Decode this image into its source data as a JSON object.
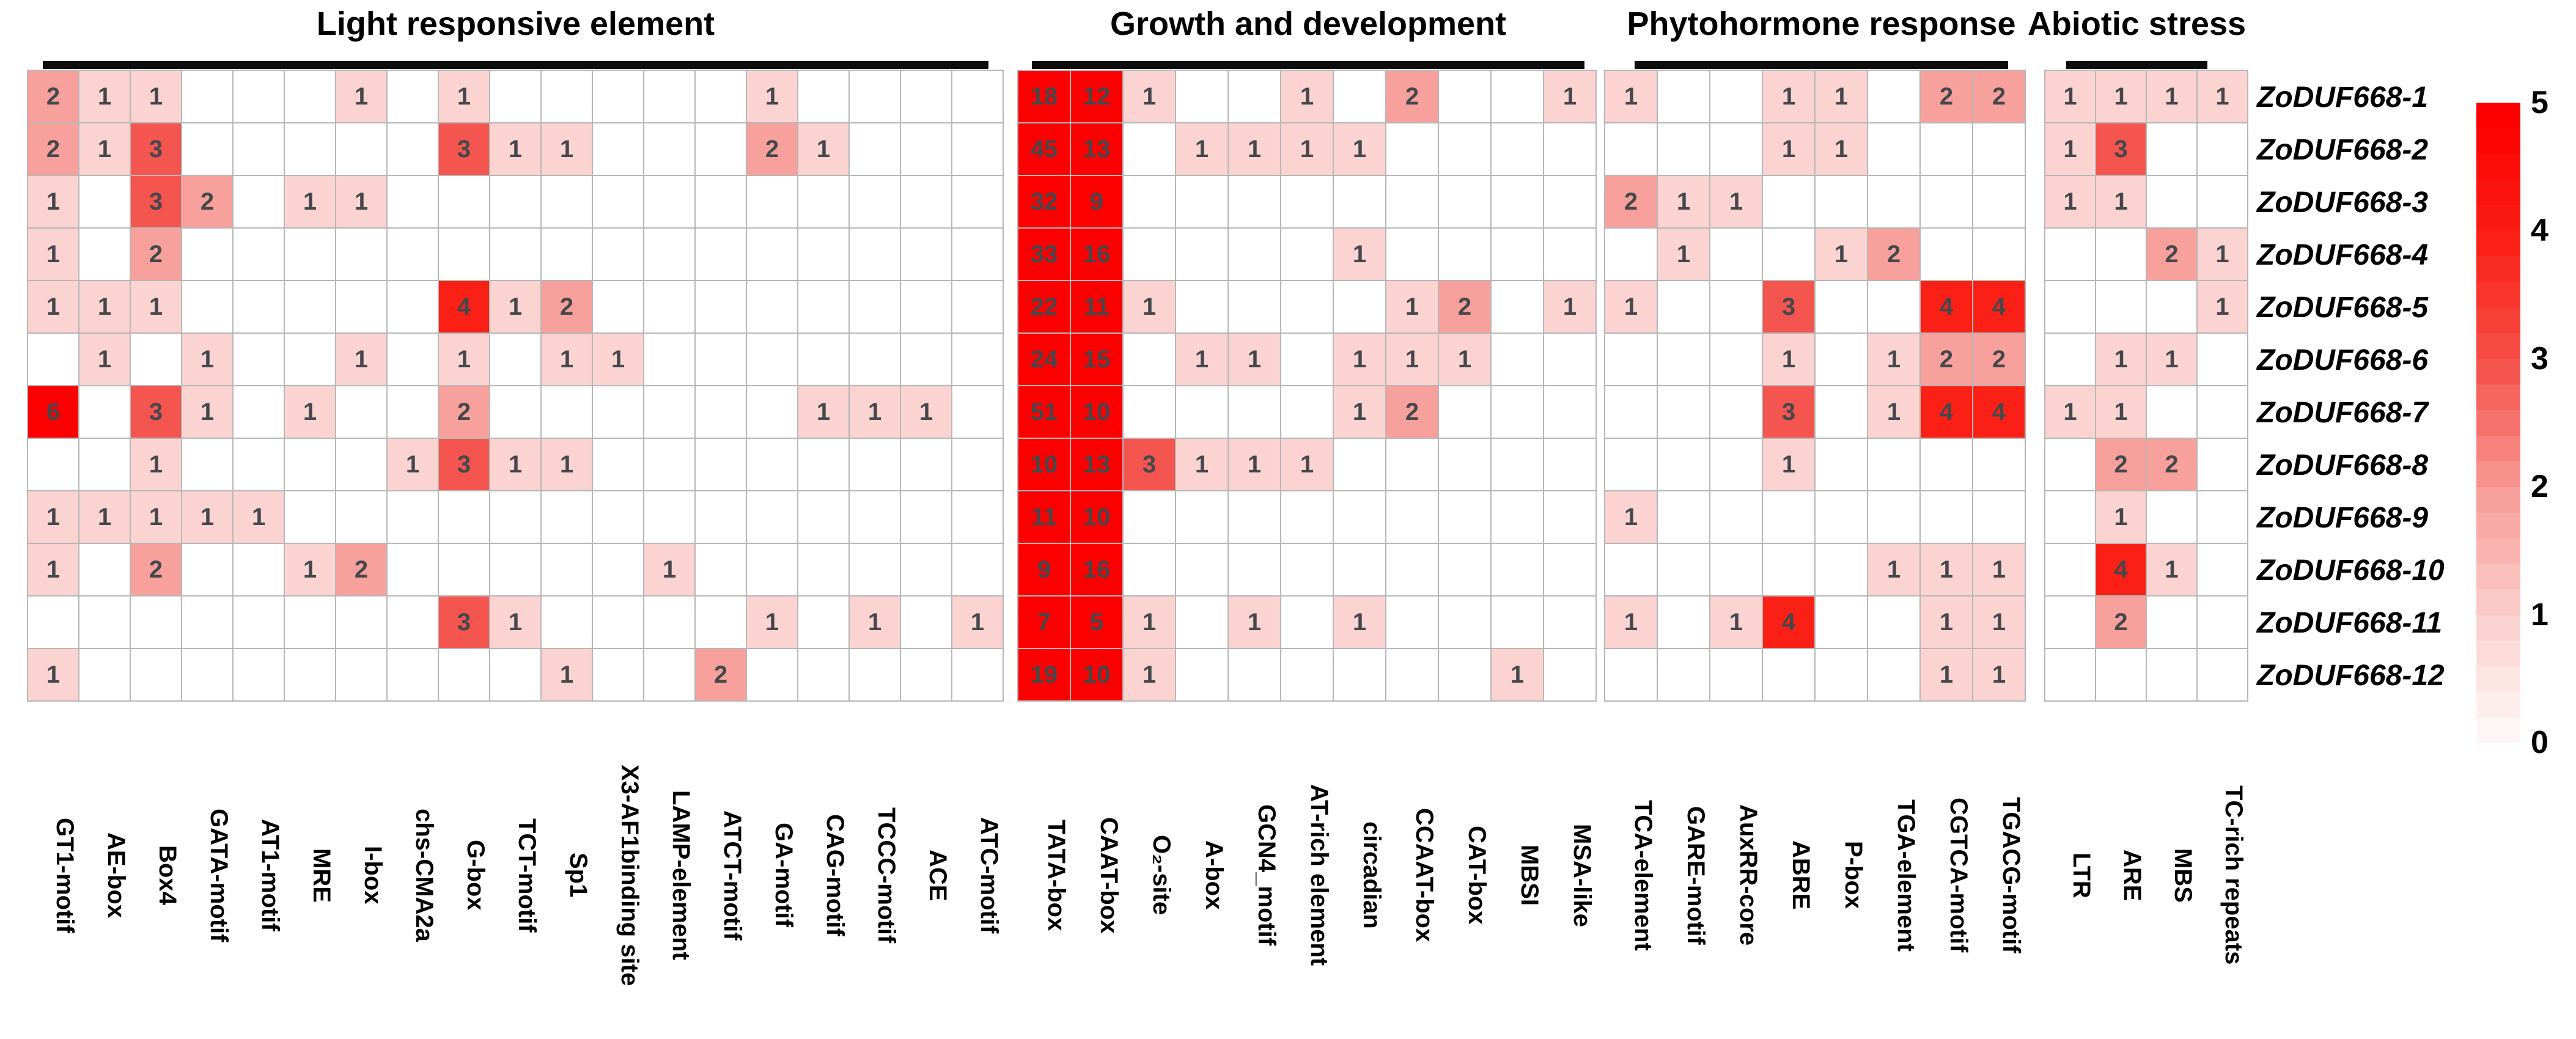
{
  "chart_data": {
    "type": "heatmap",
    "title": "",
    "column_groups": [
      {
        "label": "Light responsive element",
        "columns": [
          "GT1-motif",
          "AE-box",
          "Box4",
          "GATA-motif",
          "AT1-motif",
          "MRE",
          "I-box",
          "chs-CMA2a",
          "G-box",
          "TCT-motif",
          "Sp1",
          "X3-AF1binding site",
          "LAMP-element",
          "ATCT-motif",
          "GA-motif",
          "CAG-motif",
          "TCCC-motif",
          "ACE",
          "ATC-motif"
        ]
      },
      {
        "label": "Growth and development",
        "columns": [
          "TATA-box",
          "CAAT-box",
          "O₂-site",
          "A-box",
          "GCN4_motif",
          "AT-rich element",
          "circadian",
          "CCAAT-box",
          "CAT-box",
          "MBSI",
          "MSA-like"
        ]
      },
      {
        "label": "Phytohormone response",
        "columns": [
          "TCA-element",
          "GARE-motif",
          "AuxRR-core",
          "ABRE",
          "P-box",
          "TGA-element",
          "CGTCA-motif",
          "TGACG-motif"
        ]
      },
      {
        "label": "Abiotic stress",
        "columns": [
          "LTR",
          "ARE",
          "MBS",
          "TC-rich repeats"
        ]
      }
    ],
    "rows": [
      {
        "label": "ZoDUF668-1",
        "values": [
          [
            2,
            1,
            1,
            0,
            0,
            0,
            1,
            0,
            1,
            0,
            0,
            0,
            0,
            0,
            1,
            0,
            0,
            0,
            0
          ],
          [
            18,
            12,
            1,
            0,
            0,
            1,
            0,
            2,
            0,
            0,
            1
          ],
          [
            1,
            0,
            0,
            1,
            1,
            0,
            2,
            2
          ],
          [
            1,
            1,
            1,
            1
          ]
        ]
      },
      {
        "label": "ZoDUF668-2",
        "values": [
          [
            2,
            1,
            3,
            0,
            0,
            0,
            0,
            0,
            3,
            1,
            1,
            0,
            0,
            0,
            2,
            1,
            0,
            0,
            0
          ],
          [
            45,
            13,
            0,
            1,
            1,
            1,
            1,
            0,
            0,
            0,
            0
          ],
          [
            0,
            0,
            0,
            1,
            1,
            0,
            0,
            0
          ],
          [
            1,
            3,
            0,
            0
          ]
        ]
      },
      {
        "label": "ZoDUF668-3",
        "values": [
          [
            1,
            0,
            3,
            2,
            0,
            1,
            1,
            0,
            0,
            0,
            0,
            0,
            0,
            0,
            0,
            0,
            0,
            0,
            0
          ],
          [
            32,
            9,
            0,
            0,
            0,
            0,
            0,
            0,
            0,
            0,
            0
          ],
          [
            2,
            1,
            1,
            0,
            0,
            0,
            0,
            0
          ],
          [
            1,
            1,
            0,
            0
          ]
        ]
      },
      {
        "label": "ZoDUF668-4",
        "values": [
          [
            1,
            0,
            2,
            0,
            0,
            0,
            0,
            0,
            0,
            0,
            0,
            0,
            0,
            0,
            0,
            0,
            0,
            0,
            0
          ],
          [
            33,
            16,
            0,
            0,
            0,
            0,
            1,
            0,
            0,
            0,
            0
          ],
          [
            0,
            1,
            0,
            0,
            1,
            2,
            0,
            0
          ],
          [
            0,
            0,
            2,
            1
          ]
        ]
      },
      {
        "label": "ZoDUF668-5",
        "values": [
          [
            1,
            1,
            1,
            0,
            0,
            0,
            0,
            0,
            4,
            1,
            2,
            0,
            0,
            0,
            0,
            0,
            0,
            0,
            0
          ],
          [
            22,
            11,
            1,
            0,
            0,
            0,
            0,
            1,
            2,
            0,
            1
          ],
          [
            1,
            0,
            0,
            3,
            0,
            0,
            4,
            4
          ],
          [
            0,
            0,
            0,
            1
          ]
        ]
      },
      {
        "label": "ZoDUF668-6",
        "values": [
          [
            0,
            1,
            0,
            1,
            0,
            0,
            1,
            0,
            1,
            0,
            1,
            1,
            0,
            0,
            0,
            0,
            0,
            0,
            0
          ],
          [
            24,
            15,
            0,
            1,
            1,
            0,
            1,
            1,
            1,
            0,
            0
          ],
          [
            0,
            0,
            0,
            1,
            0,
            1,
            2,
            2
          ],
          [
            0,
            1,
            1,
            0
          ]
        ]
      },
      {
        "label": "ZoDUF668-7",
        "values": [
          [
            6,
            0,
            3,
            1,
            0,
            1,
            0,
            0,
            2,
            0,
            0,
            0,
            0,
            0,
            0,
            1,
            1,
            1,
            0
          ],
          [
            51,
            10,
            0,
            0,
            0,
            0,
            1,
            2,
            0,
            0,
            0
          ],
          [
            0,
            0,
            0,
            3,
            0,
            1,
            4,
            4
          ],
          [
            1,
            1,
            0,
            0
          ]
        ]
      },
      {
        "label": "ZoDUF668-8",
        "values": [
          [
            0,
            0,
            1,
            0,
            0,
            0,
            0,
            1,
            3,
            1,
            1,
            0,
            0,
            0,
            0,
            0,
            0,
            0,
            0
          ],
          [
            10,
            13,
            3,
            1,
            1,
            1,
            0,
            0,
            0,
            0,
            0
          ],
          [
            0,
            0,
            0,
            1,
            0,
            0,
            0,
            0
          ],
          [
            0,
            2,
            2,
            0
          ]
        ]
      },
      {
        "label": "ZoDUF668-9",
        "values": [
          [
            1,
            1,
            1,
            1,
            1,
            0,
            0,
            0,
            0,
            0,
            0,
            0,
            0,
            0,
            0,
            0,
            0,
            0,
            0
          ],
          [
            11,
            10,
            0,
            0,
            0,
            0,
            0,
            0,
            0,
            0,
            0
          ],
          [
            1,
            0,
            0,
            0,
            0,
            0,
            0,
            0
          ],
          [
            0,
            1,
            0,
            0
          ]
        ]
      },
      {
        "label": "ZoDUF668-10",
        "values": [
          [
            1,
            0,
            2,
            0,
            0,
            1,
            2,
            0,
            0,
            0,
            0,
            0,
            1,
            0,
            0,
            0,
            0,
            0,
            0
          ],
          [
            9,
            16,
            0,
            0,
            0,
            0,
            0,
            0,
            0,
            0,
            0
          ],
          [
            0,
            0,
            0,
            0,
            0,
            1,
            1,
            1
          ],
          [
            0,
            4,
            1,
            0
          ]
        ]
      },
      {
        "label": "ZoDUF668-11",
        "values": [
          [
            0,
            0,
            0,
            0,
            0,
            0,
            0,
            0,
            3,
            1,
            0,
            0,
            0,
            0,
            1,
            0,
            1,
            0,
            1
          ],
          [
            7,
            5,
            1,
            0,
            1,
            0,
            1,
            0,
            0,
            0,
            0
          ],
          [
            1,
            0,
            1,
            4,
            0,
            0,
            1,
            1
          ],
          [
            0,
            2,
            0,
            0
          ]
        ]
      },
      {
        "label": "ZoDUF668-12",
        "values": [
          [
            1,
            0,
            0,
            0,
            0,
            0,
            0,
            0,
            0,
            0,
            1,
            0,
            0,
            2,
            0,
            0,
            0,
            0,
            0
          ],
          [
            19,
            10,
            1,
            0,
            0,
            0,
            0,
            0,
            0,
            1,
            0
          ],
          [
            0,
            0,
            0,
            0,
            0,
            0,
            1,
            1
          ],
          [
            0,
            0,
            0,
            0
          ]
        ]
      }
    ],
    "colorbar": {
      "min": 0,
      "max": 5,
      "ticks": [
        "5",
        "4",
        "3",
        "2",
        "1",
        "0"
      ],
      "value_colors": {
        "0": "#ffffff",
        "1": "#fbd3d0",
        "2": "#f8a09b",
        "3": "#f5554f",
        "4": "#fb2015",
        "5": "#fc0000"
      },
      "cell_text_color": "#44484d",
      "grid_line_color": "#b7b7b7"
    }
  }
}
